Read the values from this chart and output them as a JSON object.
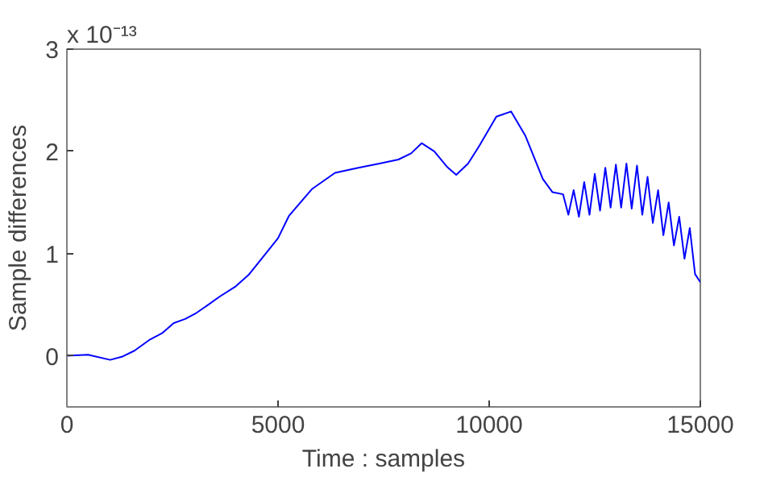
{
  "chart_data": {
    "type": "line",
    "xlabel": "Time : samples",
    "ylabel": "Sample differences",
    "annotations": [
      "x 10⁻¹³"
    ],
    "xlim": [
      0,
      15000
    ],
    "ylim": [
      -0.5,
      3
    ],
    "xticks": [
      0,
      5000,
      10000,
      15000
    ],
    "yticks": [
      0,
      1,
      2,
      3
    ],
    "grid": false,
    "marker": "none",
    "line_style": "solid",
    "series": [
      {
        "color": "#0000ff",
        "x": [
          0,
          500,
          1025,
          1300,
          1600,
          1970,
          2250,
          2530,
          2800,
          3070,
          3350,
          3620,
          4000,
          4300,
          4710,
          5000,
          5260,
          5800,
          6350,
          6900,
          7400,
          7850,
          8150,
          8400,
          8700,
          9000,
          9220,
          9500,
          9760,
          10170,
          10520,
          10860,
          11270,
          11500,
          11750,
          11875,
          12000,
          12125,
          12250,
          12375,
          12500,
          12625,
          12750,
          12875,
          13000,
          13125,
          13250,
          13375,
          13500,
          13625,
          13750,
          13875,
          14000,
          14125,
          14250,
          14375,
          14500,
          14625,
          14750,
          14875,
          15000
        ],
        "values": [
          0,
          0.01,
          -0.04,
          -0.01,
          0.05,
          0.16,
          0.22,
          0.32,
          0.36,
          0.42,
          0.5,
          0.58,
          0.68,
          0.79,
          1.0,
          1.15,
          1.37,
          1.63,
          1.79,
          1.84,
          1.88,
          1.92,
          1.98,
          2.08,
          2.0,
          1.85,
          1.77,
          1.88,
          2.05,
          2.34,
          2.39,
          2.15,
          1.73,
          1.6,
          1.58,
          1.38,
          1.62,
          1.36,
          1.7,
          1.38,
          1.78,
          1.42,
          1.84,
          1.45,
          1.87,
          1.45,
          1.88,
          1.44,
          1.86,
          1.38,
          1.75,
          1.3,
          1.62,
          1.18,
          1.5,
          1.08,
          1.36,
          0.95,
          1.25,
          0.8,
          0.72
        ]
      }
    ]
  }
}
